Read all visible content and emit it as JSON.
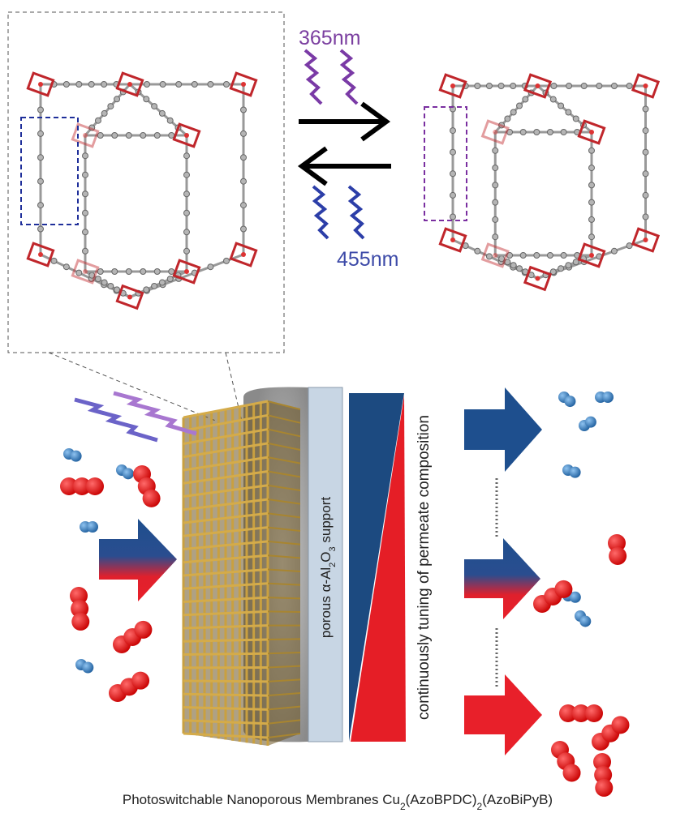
{
  "wavelength_forward": "365nm",
  "wavelength_backward": "455nm",
  "support_label": [
    "porous α-Al",
    "2",
    "O",
    "3",
    " support"
  ],
  "gradient_label": "continuously tuning of permeate composition",
  "caption": [
    "Photoswitchable Nanoporous Membranes Cu",
    "2",
    "(AzoBPDC)",
    "2",
    "(AzoBiPyB)"
  ]
}
